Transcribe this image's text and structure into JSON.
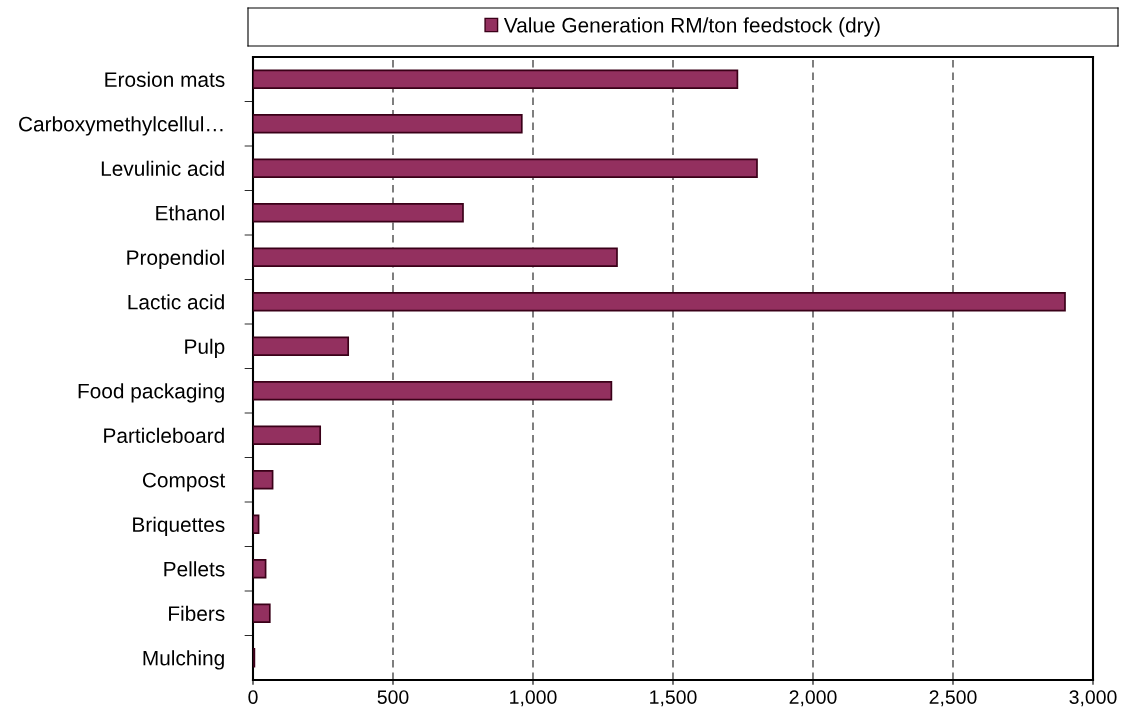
{
  "chart_data": {
    "type": "bar",
    "orientation": "horizontal",
    "categories": [
      "Erosion mats",
      "Carboxymethylcellul…",
      "Levulinic acid",
      "Ethanol",
      "Propendiol",
      "Lactic acid",
      "Pulp",
      "Food packaging",
      "Particleboard",
      "Compost",
      "Briquettes",
      "Pellets",
      "Fibers",
      "Mulching"
    ],
    "series": [
      {
        "name": "Value Generation RM/ton feedstock (dry)",
        "color": "#93305f",
        "values": [
          1730,
          960,
          1800,
          750,
          1300,
          2900,
          340,
          1280,
          240,
          70,
          20,
          45,
          60,
          5
        ]
      }
    ],
    "xlim": [
      0,
      3000
    ],
    "xticks": [
      0,
      {
        "value": 500,
        "label": "500"
      },
      {
        "value": 1000,
        "label": "1,000"
      },
      {
        "value": 1500,
        "label": "1,500"
      },
      {
        "value": 2000,
        "label": "2,000"
      },
      {
        "value": 2500,
        "label": "2,500"
      },
      {
        "value": 3000,
        "label": "3,000"
      }
    ],
    "grid": "x",
    "legend": "top"
  }
}
